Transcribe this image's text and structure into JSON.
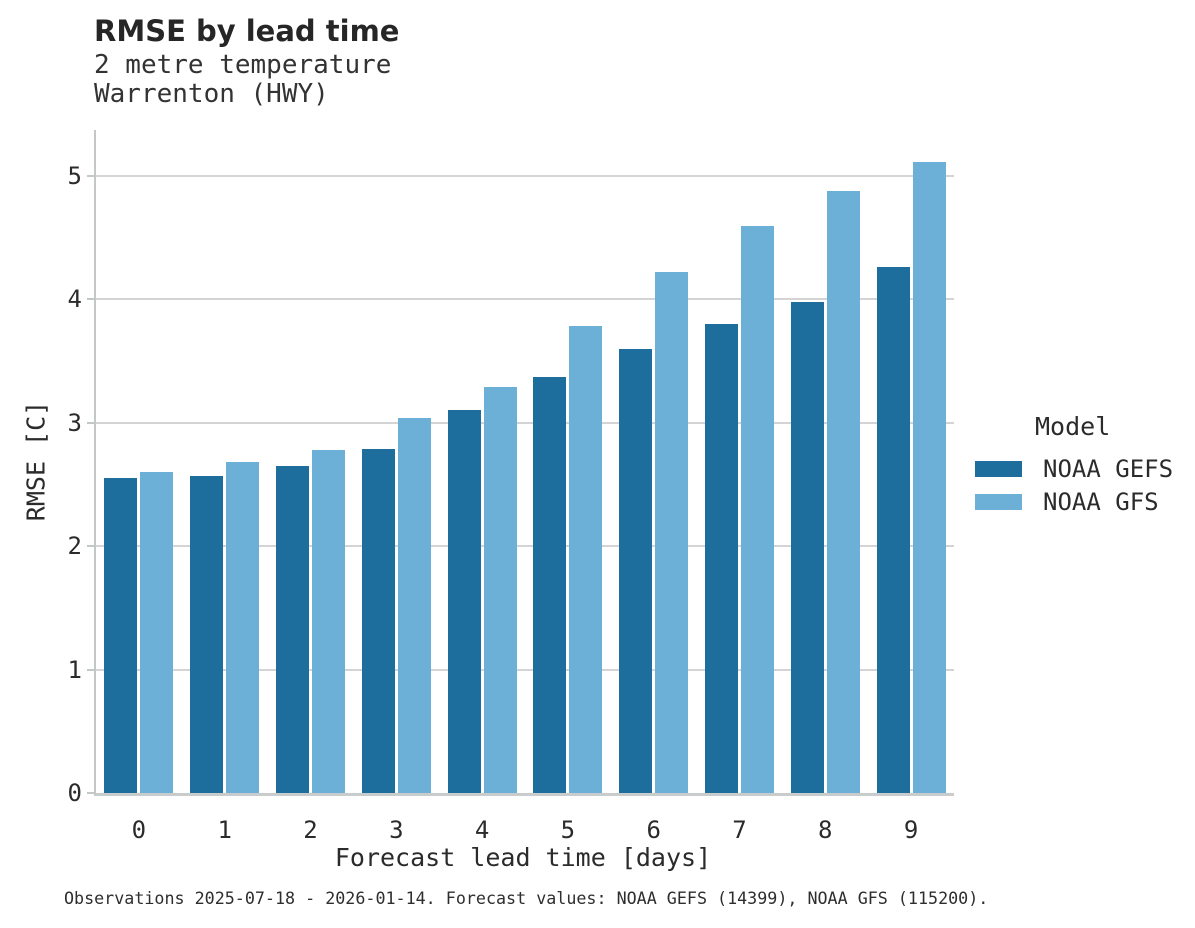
{
  "chart_data": {
    "type": "bar",
    "title": "RMSE by lead time",
    "subtitle_lines": [
      "2 metre temperature",
      "Warrenton (HWY)"
    ],
    "xlabel": "Forecast lead time [days]",
    "ylabel": "RMSE [C]",
    "categories": [
      "0",
      "1",
      "2",
      "3",
      "4",
      "5",
      "6",
      "7",
      "8",
      "9"
    ],
    "series": [
      {
        "name": "NOAA GEFS",
        "color": "#1d6e9c",
        "values": [
          2.55,
          2.57,
          2.65,
          2.79,
          3.1,
          3.37,
          3.6,
          3.8,
          3.98,
          4.26
        ]
      },
      {
        "name": "NOAA GFS",
        "color": "#6cb0d8",
        "values": [
          2.6,
          2.68,
          2.78,
          3.04,
          3.29,
          3.78,
          4.22,
          4.59,
          4.88,
          5.11
        ]
      }
    ],
    "ylim": [
      0,
      5.37
    ],
    "yticks": [
      0,
      1,
      2,
      3,
      4,
      5
    ],
    "grid": "horizontal",
    "legend": {
      "title": "Model",
      "position": "right-middle"
    },
    "caption": "Observations 2025-07-18 - 2026-01-14. Forecast values: NOAA GEFS (14399), NOAA GFS (115200)."
  },
  "colors": {
    "grid": "#d4d4d4",
    "spine": "#c3c7c8",
    "baseline": "#c9cccd",
    "text": "#2b2b2b"
  }
}
